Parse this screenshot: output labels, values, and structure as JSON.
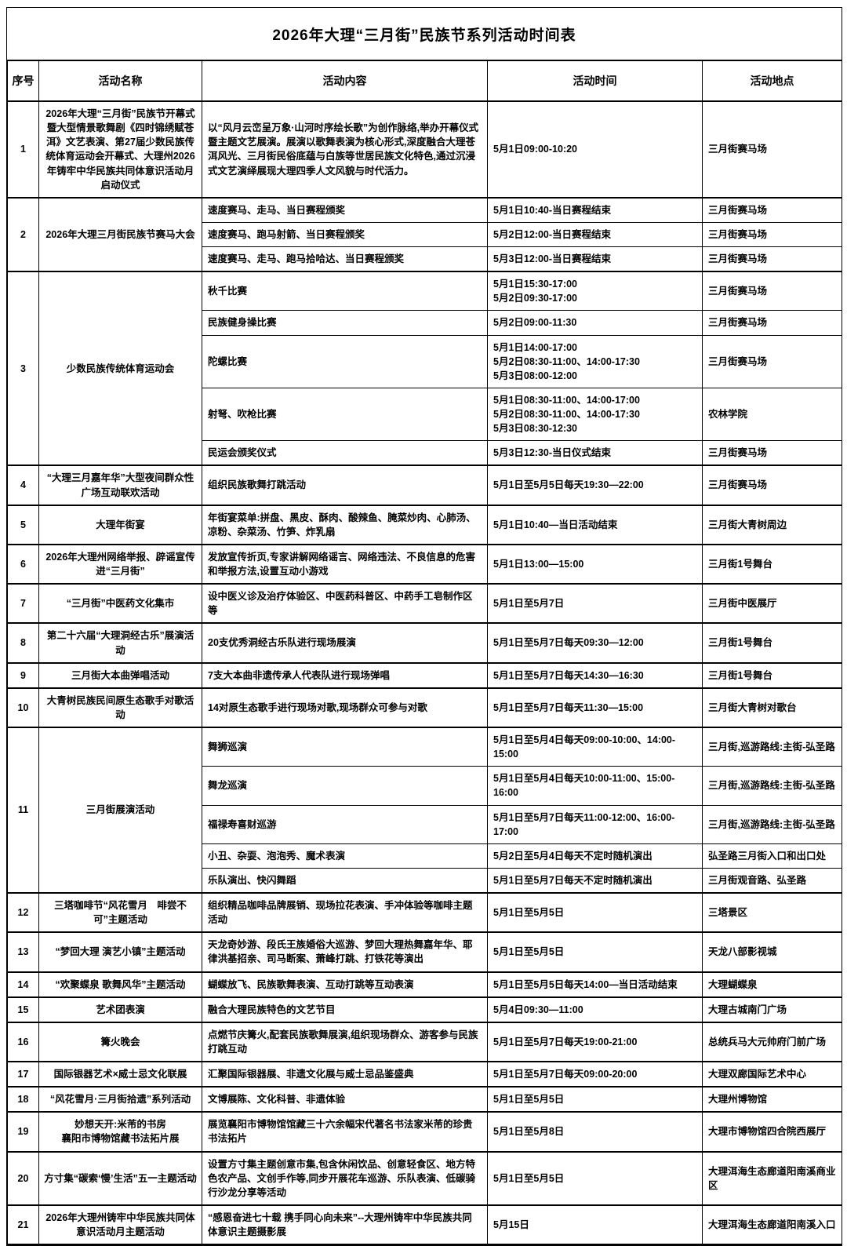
{
  "title": "2026年大理“三月街”民族节系列活动时间表",
  "colors": {
    "border": "#000000",
    "text": "#000000",
    "background": "#ffffff"
  },
  "table": {
    "columns": [
      "序号",
      "活动名称",
      "活动内容",
      "活动时间",
      "活动地点"
    ],
    "rows": [
      {
        "no": "1",
        "name": "2026年大理“三月街”民族节开幕式暨大型情景歌舞剧《四时锦绣赋苍洱》文艺表演、第27届少数民族传统体育运动会开幕式、大理州2026年铸牢中华民族共同体意识活动月启动仪式",
        "items": [
          {
            "content": "以“风月云峦呈万象·山河时序绘长歌”为创作脉络,举办开幕仪式暨主题文艺展演。展演以歌舞表演为核心形式,深度融合大理苍洱风光、三月街民俗底蕴与白族等世居民族文化特色,通过沉浸式文艺演绎展现大理四季人文风貌与时代活力。",
            "time": "5月1日09:00-10:20",
            "place": "三月街赛马场"
          }
        ]
      },
      {
        "no": "2",
        "name": "2026年大理三月街民族节赛马大会",
        "items": [
          {
            "content": "速度赛马、走马、当日赛程颁奖",
            "time": "5月1日10:40-当日赛程结束",
            "place": "三月街赛马场"
          },
          {
            "content": "速度赛马、跑马射箭、当日赛程颁奖",
            "time": "5月2日12:00-当日赛程结束",
            "place": "三月街赛马场"
          },
          {
            "content": "速度赛马、走马、跑马拾哈达、当日赛程颁奖",
            "time": "5月3日12:00-当日赛程结束",
            "place": "三月街赛马场"
          }
        ]
      },
      {
        "no": "3",
        "name": "少数民族传统体育运动会",
        "items": [
          {
            "content": "秋千比赛",
            "time": "5月1日15:30-17:00\n5月2日09:30-17:00",
            "place": "三月街赛马场"
          },
          {
            "content": "民族健身操比赛",
            "time": "5月2日09:00-11:30",
            "place": "三月街赛马场"
          },
          {
            "content": "陀螺比赛",
            "time": "5月1日14:00-17:00\n5月2日08:30-11:00、14:00-17:30\n5月3日08:00-12:00",
            "place": "三月街赛马场"
          },
          {
            "content": "射弩、吹枪比赛",
            "time": "5月1日08:30-11:00、14:00-17:00\n5月2日08:30-11:00、14:00-17:30\n5月3日08:30-12:30",
            "place": "农林学院"
          },
          {
            "content": "民运会颁奖仪式",
            "time": "5月3日12:30-当日仪式结束",
            "place": "三月街赛马场"
          }
        ]
      },
      {
        "no": "4",
        "name": "“大理三月嘉年华”大型夜间群众性广场互动联欢活动",
        "items": [
          {
            "content": "组织民族歌舞打跳活动",
            "time": "5月1日至5月5日每天19:30—22:00",
            "place": "三月街赛马场"
          }
        ]
      },
      {
        "no": "5",
        "name": "大理年街宴",
        "items": [
          {
            "content": "年街宴菜单:拼盘、黑皮、酥肉、酸辣鱼、腌菜炒肉、心肺汤、凉粉、杂菜汤、竹笋、炸乳扇",
            "time": "5月1日10:40—当日活动结束",
            "place": "三月街大青树周边"
          }
        ]
      },
      {
        "no": "6",
        "name": "2026年大理州网络举报、辟谣宣传进“三月街”",
        "items": [
          {
            "content": "发放宣传折页,专家讲解网络谣言、网络违法、不良信息的危害和举报方法,设置互动小游戏",
            "time": "5月1日13:00—15:00",
            "place": "三月街1号舞台"
          }
        ]
      },
      {
        "no": "7",
        "name": "“三月街”中医药文化集市",
        "items": [
          {
            "content": "设中医义诊及治疗体验区、中医药科普区、中药手工皂制作区等",
            "time": "5月1日至5月7日",
            "place": "三月街中医展厅"
          }
        ]
      },
      {
        "no": "8",
        "name": "第二十六届“大理洞经古乐”展演活动",
        "items": [
          {
            "content": "20支优秀洞经古乐队进行现场展演",
            "time": "5月1日至5月7日每天09:30—12:00",
            "place": "三月街1号舞台"
          }
        ]
      },
      {
        "no": "9",
        "name": "三月街大本曲弹唱活动",
        "items": [
          {
            "content": "7支大本曲非遗传承人代表队进行现场弹唱",
            "time": "5月1日至5月7日每天14:30—16:30",
            "place": "三月街1号舞台"
          }
        ]
      },
      {
        "no": "10",
        "name": "大青树民族民间原生态歌手对歌活动",
        "items": [
          {
            "content": "14对原生态歌手进行现场对歌,现场群众可参与对歌",
            "time": "5月1日至5月7日每天11:30—15:00",
            "place": "三月街大青树对歌台"
          }
        ]
      },
      {
        "no": "11",
        "name": "三月街展演活动",
        "items": [
          {
            "content": "舞狮巡演",
            "time": "5月1日至5月4日每天09:00-10:00、14:00-15:00",
            "place": "三月街,巡游路线:主街-弘圣路"
          },
          {
            "content": "舞龙巡演",
            "time": "5月1日至5月4日每天10:00-11:00、15:00-16:00",
            "place": "三月街,巡游路线:主街-弘圣路"
          },
          {
            "content": "福禄寿喜财巡游",
            "time": "5月1日至5月7日每天11:00-12:00、16:00-17:00",
            "place": "三月街,巡游路线:主街-弘圣路"
          },
          {
            "content": "小丑、杂耍、泡泡秀、魔术表演",
            "time": "5月2日至5月4日每天不定时随机演出",
            "place": "弘圣路三月街入口和出口处"
          },
          {
            "content": "乐队演出、快闪舞蹈",
            "time": "5月1日至5月7日每天不定时随机演出",
            "place": "三月街观音路、弘圣路"
          }
        ]
      },
      {
        "no": "12",
        "name": "三塔咖啡节“风花雪月　啡尝不可”主题活动",
        "items": [
          {
            "content": "组织精品咖啡品牌展销、现场拉花表演、手冲体验等咖啡主题活动",
            "time": "5月1日至5月5日",
            "place": "三塔景区"
          }
        ]
      },
      {
        "no": "13",
        "name": "“梦回大理 演艺小镇”主题活动",
        "items": [
          {
            "content": "天龙奇妙游、段氏王族婚俗大巡游、梦回大理热舞嘉年华、耶律洪基招亲、司马断案、萧峰打跳、打铁花等演出",
            "time": "5月1日至5月5日",
            "place": "天龙八部影视城"
          }
        ]
      },
      {
        "no": "14",
        "name": "“欢聚蝶泉 歌舞风华”主题活动",
        "items": [
          {
            "content": "蝴蝶放飞、民族歌舞表演、互动打跳等互动表演",
            "time": "5月1日至5月5日每天14:00—当日活动结束",
            "place": "大理蝴蝶泉"
          }
        ]
      },
      {
        "no": "15",
        "name": "艺术团表演",
        "items": [
          {
            "content": "融合大理民族特色的文艺节目",
            "time": "5月4日09:30—11:00",
            "place": "大理古城南门广场"
          }
        ]
      },
      {
        "no": "16",
        "name": "篝火晚会",
        "items": [
          {
            "content": "点燃节庆篝火,配套民族歌舞展演,组织现场群众、游客参与民族打跳互动",
            "time": "5月1日至5月7日每天19:00-21:00",
            "place": "总统兵马大元帅府门前广场"
          }
        ]
      },
      {
        "no": "17",
        "name": "国际银器艺术×威士忌文化联展",
        "items": [
          {
            "content": "汇聚国际银器展、非遗文化展与威士忌品鉴盛典",
            "time": "5月1日至5月7日每天09:00-20:00",
            "place": "大理双廊国际艺术中心"
          }
        ]
      },
      {
        "no": "18",
        "name": "“风花雪月·三月街拾遗”系列活动",
        "items": [
          {
            "content": "文博展陈、文化科普、非遗体验",
            "time": "5月1日至5月5日",
            "place": "大理州博物馆"
          }
        ]
      },
      {
        "no": "19",
        "name": "妙想天开:米芾的书房\n襄阳市博物馆藏书法拓片展",
        "items": [
          {
            "content": "展览襄阳市博物馆馆藏三十六余幅宋代著名书法家米芾的珍贵书法拓片",
            "time": "5月1日至5月8日",
            "place": "大理市博物馆四合院西展厅"
          }
        ]
      },
      {
        "no": "20",
        "name": "方寸集“碳索‘慢’生活”五一主题活动",
        "items": [
          {
            "content": "设置方寸集主题创意市集,包含休闲饮品、创意轻食区、地方特色农产品、文创手作等,同步开展花车巡游、乐队表演、低碳骑行沙龙分享等活动",
            "time": "5月1日至5月5日",
            "place": "大理洱海生态廊道阳南溪商业区"
          }
        ]
      },
      {
        "no": "21",
        "name": "2026年大理州铸牢中华民族共同体意识活动月主题活动",
        "items": [
          {
            "content": "“感恩奋进七十载 携手同心向未来”--大理州铸牢中华民族共同体意识主题摄影展",
            "time": "5月15日",
            "place": "大理洱海生态廊道阳南溪入口"
          }
        ]
      }
    ]
  }
}
